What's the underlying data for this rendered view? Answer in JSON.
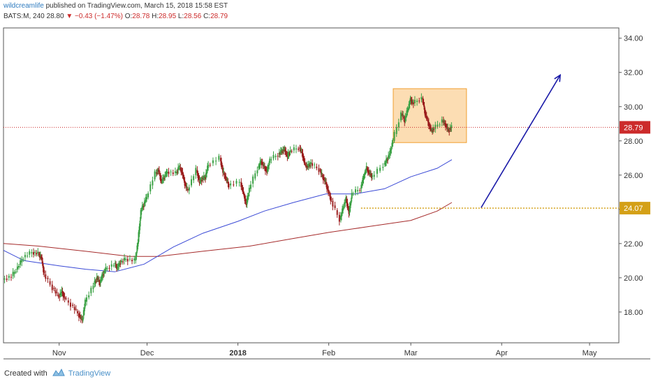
{
  "header": {
    "author": "wildcreamlife",
    "published": "published on TradingView.com, March 15, 2018 15:58 EST",
    "symbol": "BATS:M, 240",
    "last": "28.80",
    "arrow": "▼",
    "change": "−0.43 (−1.47%)",
    "o_label": "O:",
    "o_value": "28.78",
    "h_label": "H:",
    "h_value": "28.95",
    "l_label": "L:",
    "l_value": "28.56",
    "c_label": "C:",
    "c_value": "28.79"
  },
  "footer": {
    "created_with": "Created with",
    "brand": "TradingView"
  },
  "colors": {
    "up": "#3aa144",
    "down": "#9b1c1c",
    "ma_fast": "#3b4ad6",
    "ma_slow": "#a52a2a",
    "price_line": "#cc2b2b",
    "support_line": "#d4a017",
    "box_fill": "#fbd7a6",
    "box_stroke": "#f0a030",
    "arrow": "#1a1aa8"
  },
  "chart_data": {
    "type": "candlestick",
    "ylim": [
      16.2,
      34.6
    ],
    "yticks": [
      18,
      20,
      22,
      24,
      26,
      28,
      30,
      32,
      34
    ],
    "ytick_labels": [
      "18.00",
      "20.00",
      "22.00",
      "24.00",
      "26.00",
      "28.00",
      "30.00",
      "32.00",
      "34.00"
    ],
    "xticks": [
      {
        "date": "2017-11-01",
        "label": "Nov"
      },
      {
        "date": "2017-12-01",
        "label": "Dec"
      },
      {
        "date": "2018-01-01",
        "label": "2018",
        "bold": true
      },
      {
        "date": "2018-02-01",
        "label": "Feb"
      },
      {
        "date": "2018-03-01",
        "label": "Mar"
      },
      {
        "date": "2018-04-01",
        "label": "Apr"
      },
      {
        "date": "2018-05-01",
        "label": "May"
      }
    ],
    "x_start": "2017-10-13",
    "x_end": "2018-05-11",
    "price_line": {
      "value": 28.79,
      "label": "28.79"
    },
    "support_line": {
      "value": 24.07,
      "label": "24.07",
      "from": "2018-02-12"
    },
    "consolidation_box": {
      "x0": "2018-02-23",
      "x1": "2018-03-20",
      "y0": 27.9,
      "y1": 31.05
    },
    "projection_arrow": {
      "from": {
        "date": "2018-03-25",
        "price": 24.1
      },
      "to": {
        "date": "2018-04-21",
        "price": 31.85
      }
    },
    "price_path": [
      [
        "2017-10-13",
        19.9
      ],
      [
        "2017-10-16",
        20.1
      ],
      [
        "2017-10-18",
        20.6
      ],
      [
        "2017-10-20",
        21.2
      ],
      [
        "2017-10-23",
        21.5
      ],
      [
        "2017-10-25",
        21.4
      ],
      [
        "2017-10-26",
        21.2
      ],
      [
        "2017-10-27",
        20.2
      ],
      [
        "2017-10-30",
        19.4
      ],
      [
        "2017-11-01",
        18.9
      ],
      [
        "2017-11-02",
        19.2
      ],
      [
        "2017-11-03",
        18.8
      ],
      [
        "2017-11-06",
        18.3
      ],
      [
        "2017-11-08",
        17.8
      ],
      [
        "2017-11-09",
        17.5
      ],
      [
        "2017-11-10",
        18.6
      ],
      [
        "2017-11-13",
        19.6
      ],
      [
        "2017-11-14",
        20.0
      ],
      [
        "2017-11-15",
        19.7
      ],
      [
        "2017-11-16",
        20.2
      ],
      [
        "2017-11-17",
        20.5
      ],
      [
        "2017-11-20",
        20.8
      ],
      [
        "2017-11-21",
        20.6
      ],
      [
        "2017-11-22",
        20.9
      ],
      [
        "2017-11-24",
        21.1
      ],
      [
        "2017-11-27",
        21.0
      ],
      [
        "2017-11-28",
        22.1
      ],
      [
        "2017-11-29",
        23.9
      ],
      [
        "2017-11-30",
        24.3
      ],
      [
        "2017-12-01",
        24.7
      ],
      [
        "2017-12-04",
        26.1
      ],
      [
        "2017-12-05",
        26.3
      ],
      [
        "2017-12-06",
        25.6
      ],
      [
        "2017-12-07",
        25.9
      ],
      [
        "2017-12-08",
        26.2
      ],
      [
        "2017-12-11",
        26.1
      ],
      [
        "2017-12-12",
        26.5
      ],
      [
        "2017-12-13",
        26.2
      ],
      [
        "2017-12-14",
        25.5
      ],
      [
        "2017-12-15",
        25.1
      ],
      [
        "2017-12-18",
        26.3
      ],
      [
        "2017-12-19",
        25.6
      ],
      [
        "2017-12-20",
        25.8
      ],
      [
        "2017-12-21",
        25.9
      ],
      [
        "2017-12-22",
        26.6
      ],
      [
        "2017-12-26",
        27.0
      ],
      [
        "2017-12-27",
        26.2
      ],
      [
        "2017-12-28",
        25.8
      ],
      [
        "2017-12-29",
        25.4
      ],
      [
        "2018-01-02",
        25.6
      ],
      [
        "2018-01-03",
        24.9
      ],
      [
        "2018-01-04",
        24.3
      ],
      [
        "2018-01-05",
        25.2
      ],
      [
        "2018-01-08",
        26.4
      ],
      [
        "2018-01-09",
        26.8
      ],
      [
        "2018-01-10",
        26.5
      ],
      [
        "2018-01-11",
        26.2
      ],
      [
        "2018-01-12",
        26.9
      ],
      [
        "2018-01-15",
        27.2
      ],
      [
        "2018-01-16",
        27.4
      ],
      [
        "2018-01-17",
        27.5
      ],
      [
        "2018-01-18",
        27.1
      ],
      [
        "2018-01-19",
        27.4
      ],
      [
        "2018-01-22",
        27.6
      ],
      [
        "2018-01-23",
        27.3
      ],
      [
        "2018-01-24",
        26.6
      ],
      [
        "2018-01-25",
        26.5
      ],
      [
        "2018-01-26",
        26.7
      ],
      [
        "2018-01-29",
        26.3
      ],
      [
        "2018-01-30",
        25.9
      ],
      [
        "2018-01-31",
        25.6
      ],
      [
        "2018-02-01",
        25.0
      ],
      [
        "2018-02-02",
        24.5
      ],
      [
        "2018-02-05",
        23.4
      ],
      [
        "2018-02-06",
        24.1
      ],
      [
        "2018-02-07",
        24.6
      ],
      [
        "2018-02-08",
        23.8
      ],
      [
        "2018-02-09",
        24.9
      ],
      [
        "2018-02-12",
        25.2
      ],
      [
        "2018-02-13",
        25.9
      ],
      [
        "2018-02-14",
        26.4
      ],
      [
        "2018-02-15",
        26.1
      ],
      [
        "2018-02-16",
        25.9
      ],
      [
        "2018-02-20",
        26.6
      ],
      [
        "2018-02-21",
        26.9
      ],
      [
        "2018-02-22",
        27.3
      ],
      [
        "2018-02-23",
        28.0
      ],
      [
        "2018-02-26",
        29.6
      ],
      [
        "2018-02-27",
        29.2
      ],
      [
        "2018-02-28",
        29.8
      ],
      [
        "2018-03-01",
        30.4
      ],
      [
        "2018-03-02",
        30.2
      ],
      [
        "2018-03-05",
        30.5
      ],
      [
        "2018-03-06",
        29.6
      ],
      [
        "2018-03-07",
        29.1
      ],
      [
        "2018-03-08",
        28.6
      ],
      [
        "2018-03-09",
        28.7
      ],
      [
        "2018-03-12",
        29.2
      ],
      [
        "2018-03-13",
        28.9
      ],
      [
        "2018-03-14",
        28.6
      ],
      [
        "2018-03-15",
        28.8
      ]
    ],
    "ma_fast": [
      [
        "2017-10-13",
        21.6
      ],
      [
        "2017-10-20",
        21.0
      ],
      [
        "2017-11-01",
        20.7
      ],
      [
        "2017-11-10",
        20.5
      ],
      [
        "2017-11-20",
        20.35
      ],
      [
        "2017-11-30",
        20.8
      ],
      [
        "2017-12-10",
        21.8
      ],
      [
        "2017-12-20",
        22.6
      ],
      [
        "2018-01-01",
        23.3
      ],
      [
        "2018-01-10",
        23.9
      ],
      [
        "2018-01-20",
        24.4
      ],
      [
        "2018-01-31",
        24.9
      ],
      [
        "2018-02-10",
        24.9
      ],
      [
        "2018-02-20",
        25.2
      ],
      [
        "2018-03-01",
        25.9
      ],
      [
        "2018-03-10",
        26.4
      ],
      [
        "2018-03-15",
        26.9
      ]
    ],
    "ma_slow": [
      [
        "2017-10-13",
        22.0
      ],
      [
        "2017-10-25",
        21.85
      ],
      [
        "2017-11-10",
        21.55
      ],
      [
        "2017-11-25",
        21.25
      ],
      [
        "2017-12-05",
        21.25
      ],
      [
        "2017-12-20",
        21.55
      ],
      [
        "2018-01-05",
        21.85
      ],
      [
        "2018-01-20",
        22.3
      ],
      [
        "2018-02-01",
        22.65
      ],
      [
        "2018-02-15",
        23.0
      ],
      [
        "2018-03-01",
        23.35
      ],
      [
        "2018-03-10",
        23.9
      ],
      [
        "2018-03-15",
        24.4
      ]
    ]
  }
}
